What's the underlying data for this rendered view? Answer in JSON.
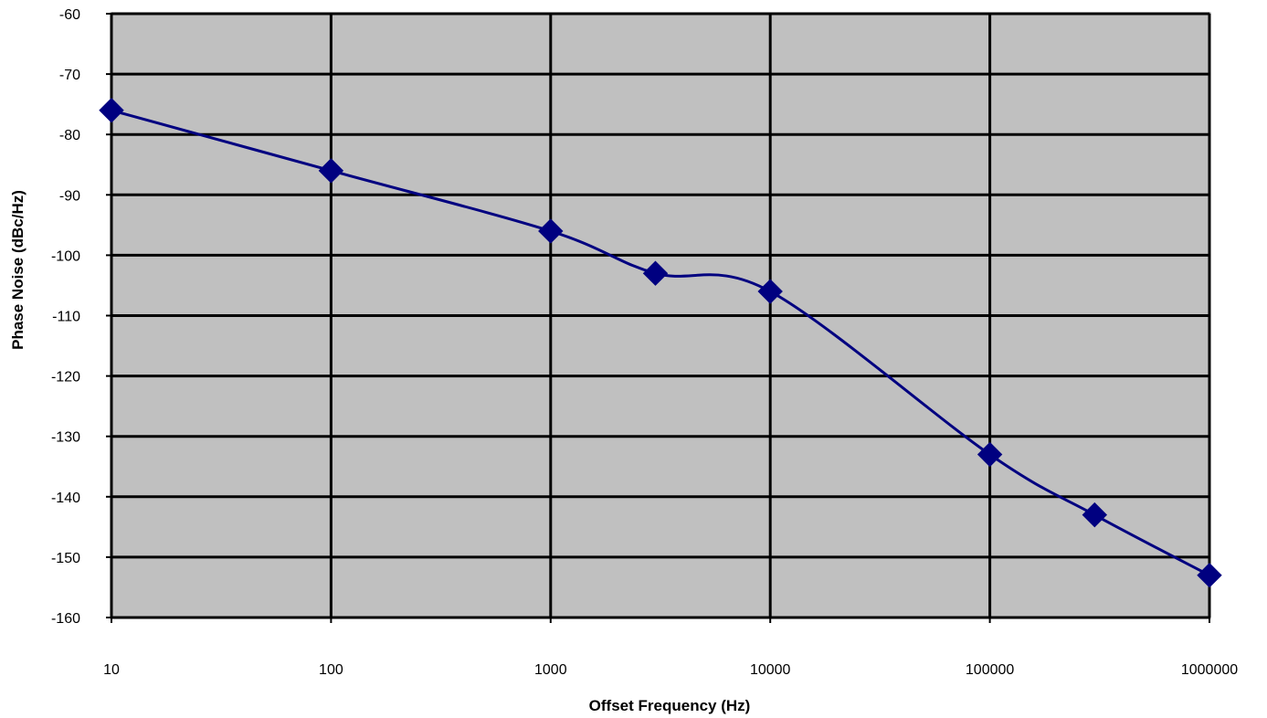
{
  "chart_data": {
    "type": "line",
    "title": "",
    "xlabel": "Offset Frequency (Hz)",
    "ylabel": "Phase Noise (dBc/Hz)",
    "xscale": "log",
    "xlim": [
      10,
      1000000
    ],
    "ylim": [
      -160,
      -60
    ],
    "x_ticks": [
      10,
      100,
      1000,
      10000,
      100000,
      1000000
    ],
    "x_tick_labels": [
      "10",
      "100",
      "1000",
      "10000",
      "100000",
      "1000000"
    ],
    "y_ticks": [
      -60,
      -70,
      -80,
      -90,
      -100,
      -110,
      -120,
      -130,
      -140,
      -150,
      -160
    ],
    "y_tick_labels": [
      "-60",
      "-70",
      "-80",
      "-90",
      "-100",
      "-110",
      "-120",
      "-130",
      "-140",
      "-150",
      "-160"
    ],
    "grid": true,
    "legend": "none",
    "series": [
      {
        "x": [
          10,
          100,
          1000,
          3000,
          10000,
          100000,
          300000,
          1000000
        ],
        "y": [
          -76,
          -86,
          -96,
          -103,
          -106,
          -133,
          -143,
          -153
        ],
        "marker": "diamond",
        "smooth": true
      }
    ]
  },
  "colors": {
    "plot_background": "#c0c0c0",
    "grid": "#000000",
    "series": "#000080",
    "frame": "#808080"
  }
}
